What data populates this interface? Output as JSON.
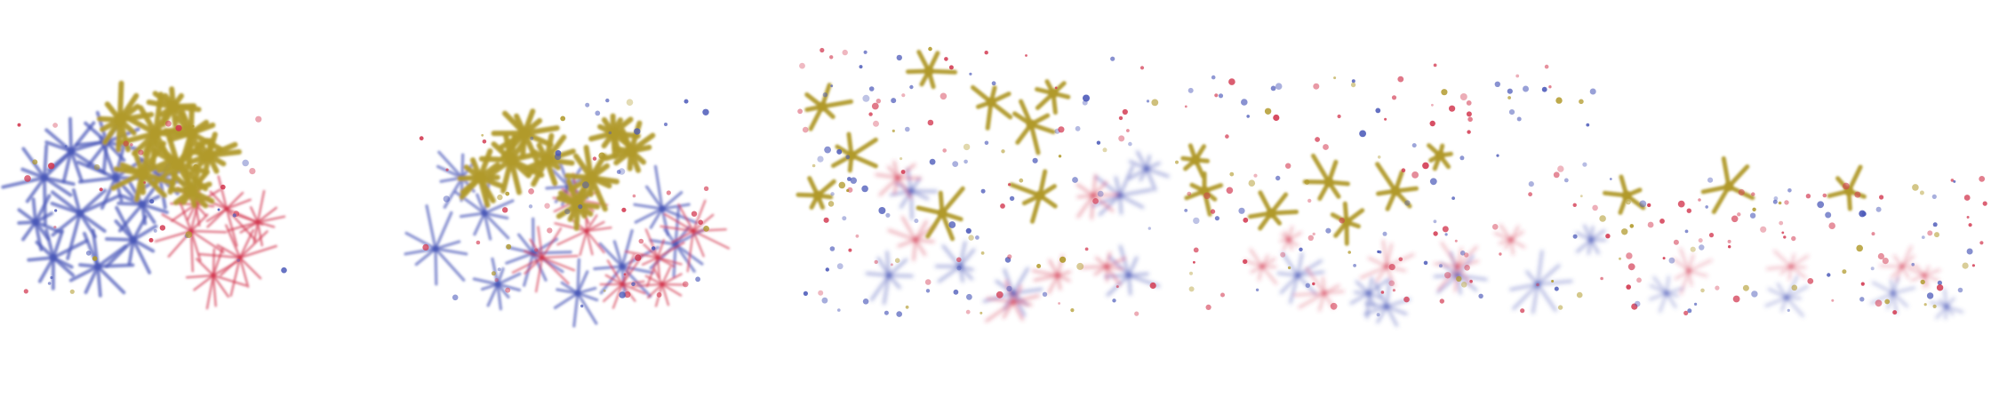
{
  "scene": {
    "kind": "scatter of star-shaped clusters across five progressive panels",
    "background": "#ffffff",
    "palette": {
      "blue": "#4a58b8",
      "red": "#d2374f",
      "gold": "#b19a2c"
    },
    "panels": [
      {
        "id": "panel-1",
        "spread": 0.0
      },
      {
        "id": "panel-2",
        "spread": 0.25
      },
      {
        "id": "panel-3",
        "spread": 0.5
      },
      {
        "id": "panel-4",
        "spread": 0.75
      },
      {
        "id": "panel-5",
        "spread": 1.0
      }
    ]
  }
}
